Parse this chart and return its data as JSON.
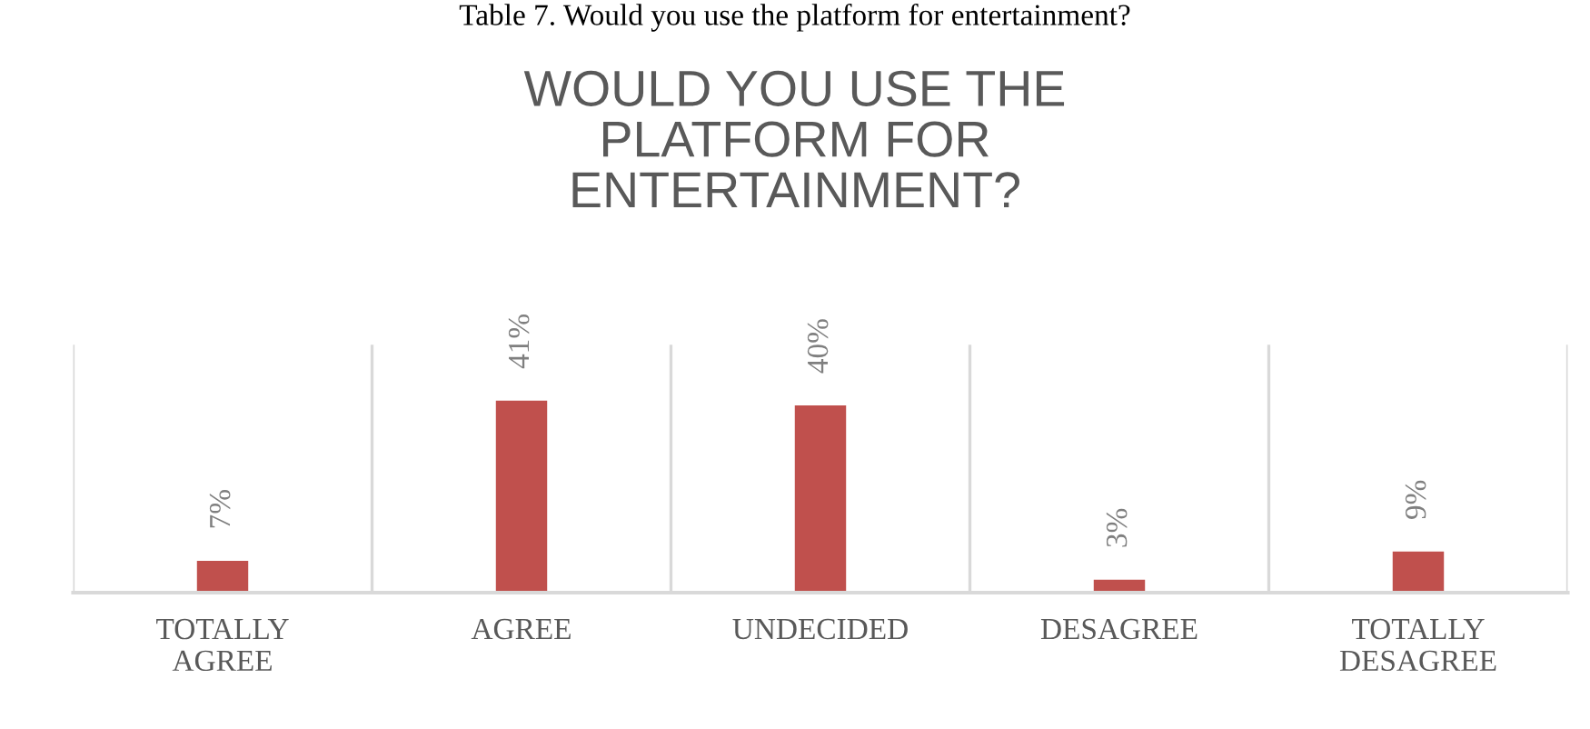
{
  "chart_data": {
    "type": "bar",
    "title": "WOULD YOU USE THE\nPLATFORM FOR\nENTERTAINMENT?",
    "annotations": [
      "Table 7. Would you use the platform for entertainment?"
    ],
    "categories": [
      "TOTALLY\nAGREE",
      "AGREE",
      "UNDECIDED",
      "DESAGREE",
      "TOTALLY\nDESAGREE"
    ],
    "values": [
      7,
      41,
      40,
      3,
      9
    ],
    "value_labels": [
      "7%",
      "41%",
      "40%",
      "3%",
      "9%"
    ],
    "color": "#c0504d"
  }
}
